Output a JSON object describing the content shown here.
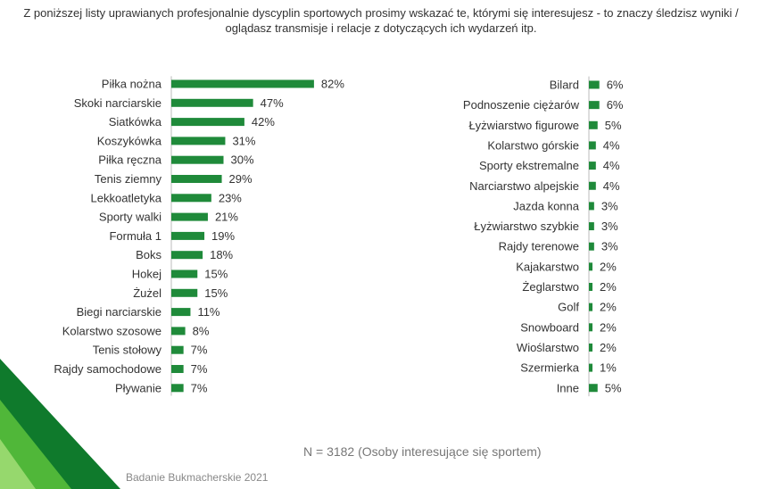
{
  "title_line1": "Z poniższej listy uprawianych profesjonalnie dyscyplin sportowych prosimy wskazać te, którymi się interesujesz - to znaczy śledzisz wyniki /",
  "title_line2": "oglądasz transmisje i relacje z dotyczących ich wydarzeń itp.",
  "note": "N = 3182 (Osoby interesujące się sportem)",
  "footer": "Badanie Bukmacherskie 2021",
  "colors": {
    "bar": "#1f8a3a",
    "accent_dark": "#0f7a2c",
    "accent_light": "#5cc23c"
  },
  "chart_data": [
    {
      "type": "bar",
      "orientation": "horizontal",
      "unit": "%",
      "categories": [
        "Piłka nożna",
        "Skoki narciarskie",
        "Siatkówka",
        "Koszykówka",
        "Piłka ręczna",
        "Tenis ziemny",
        "Lekkoatletyka",
        "Sporty walki",
        "Formuła 1",
        "Boks",
        "Hokej",
        "Żużel",
        "Biegi narciarskie",
        "Kolarstwo szosowe",
        "Tenis stołowy",
        "Rajdy samochodowe",
        "Pływanie"
      ],
      "values": [
        82,
        47,
        42,
        31,
        30,
        29,
        23,
        21,
        19,
        18,
        15,
        15,
        11,
        8,
        7,
        7,
        7
      ],
      "labels": [
        "82%",
        "47%",
        "42%",
        "31%",
        "30%",
        "29%",
        "23%",
        "21%",
        "19%",
        "18%",
        "15%",
        "15%",
        "11%",
        "8%",
        "7%",
        "7%",
        "7%"
      ],
      "xlim": [
        0,
        82
      ]
    },
    {
      "type": "bar",
      "orientation": "horizontal",
      "unit": "%",
      "categories": [
        "Bilard",
        "Podnoszenie ciężarów",
        "Łyżwiarstwo figurowe",
        "Kolarstwo górskie",
        "Sporty ekstremalne",
        "Narciarstwo alpejskie",
        "Jazda konna",
        "Łyżwiarstwo szybkie",
        "Rajdy terenowe",
        "Kajakarstwo",
        "Żeglarstwo",
        "Golf",
        "Snowboard",
        "Wioślarstwo",
        "Szermierka",
        "Inne"
      ],
      "values": [
        6,
        6,
        5,
        4,
        4,
        4,
        3,
        3,
        3,
        2,
        2,
        2,
        2,
        2,
        1,
        5
      ],
      "labels": [
        "6%",
        "6%",
        "5%",
        "4%",
        "4%",
        "4%",
        "3%",
        "3%",
        "3%",
        "2%",
        "2%",
        "2%",
        "2%",
        "2%",
        "1%",
        "5%"
      ],
      "xlim": [
        0,
        82
      ]
    }
  ]
}
